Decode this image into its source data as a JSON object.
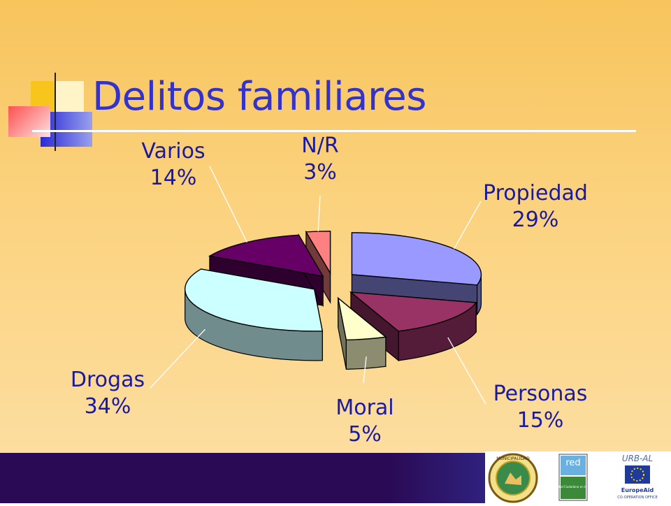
{
  "title": "Delitos familiares",
  "chart_data": {
    "type": "pie",
    "style": "3d-exploded",
    "title": "Delitos familiares",
    "slices": [
      {
        "name": "Propiedad",
        "percent": 29,
        "label": "29%",
        "color": "#9999ff"
      },
      {
        "name": "Personas",
        "percent": 15,
        "label": "15%",
        "color": "#993366"
      },
      {
        "name": "Moral",
        "percent": 5,
        "label": "5%",
        "color": "#ffffcc"
      },
      {
        "name": "Drogas",
        "percent": 34,
        "label": "34%",
        "color": "#ccffff"
      },
      {
        "name": "Varios",
        "percent": 14,
        "label": "14%",
        "color": "#660066"
      },
      {
        "name": "N/R",
        "percent": 3,
        "label": "3%",
        "color": "#ff8080"
      }
    ]
  },
  "logos": {
    "logo1_text": "MUNICIPALIDAD",
    "logo2_text": "red",
    "logo2_sub": "Seguridad Ciudadana en la Ciudad",
    "logo3_top": "URB-AL",
    "logo3_main": "EuropeAid",
    "logo3_sub": "CO-OPERATION OFFICE"
  },
  "colors": {
    "title": "#3333cc",
    "label": "#1a1aa0",
    "footer": "#2a0a55"
  }
}
